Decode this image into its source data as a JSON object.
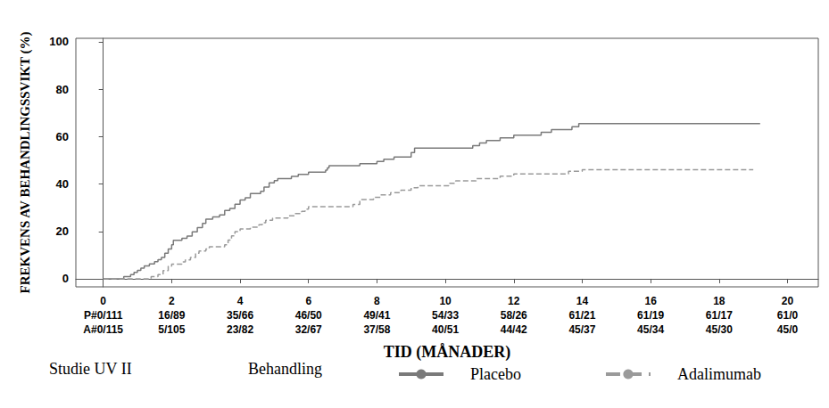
{
  "chart_data": {
    "type": "step",
    "subtitle": "Studie UV II",
    "legend_title": "Behandling",
    "x_label": "TID (MÅNADER)",
    "y_label": "FREKVENS AV BEHANDLINGSSVIKT (%)",
    "xlim": [
      -0.8,
      20.9
    ],
    "xticks": [
      0,
      2,
      4,
      6,
      8,
      10,
      12,
      14,
      16,
      18,
      20
    ],
    "ylim": [
      -3.4,
      101.5
    ],
    "yticks": [
      0,
      20,
      40,
      60,
      80,
      100
    ],
    "grid": false,
    "legend": "bottom",
    "at_risk": [
      [
        "P#0/111",
        "16/89",
        "35/66",
        "46/50",
        "49/41",
        "54/33",
        "58/26",
        "61/21",
        "61/19",
        "61/17",
        "61/0"
      ],
      [
        "A#0/115",
        "5/105",
        "23/82",
        "32/67",
        "37/58",
        "40/51",
        "44/42",
        "45/37",
        "45/34",
        "45/30",
        "45/0"
      ]
    ],
    "series": [
      {
        "name": "Placebo",
        "color": "#7a7a7a",
        "line_style": "solid",
        "x": [
          0,
          0.6,
          0.8,
          0.9,
          1.0,
          1.1,
          1.2,
          1.35,
          1.5,
          1.6,
          1.7,
          1.8,
          1.9,
          2.0,
          2.05,
          2.3,
          2.45,
          2.6,
          2.75,
          2.9,
          3.0,
          3.2,
          3.4,
          3.55,
          3.7,
          3.85,
          4.0,
          4.15,
          4.3,
          4.6,
          4.7,
          4.85,
          5.0,
          5.1,
          5.5,
          5.7,
          6.0,
          6.5,
          6.55,
          6.6,
          7.5,
          8.0,
          8.2,
          8.5,
          9.0,
          9.1,
          10.8,
          11.0,
          11.2,
          11.6,
          12.0,
          12.8,
          13.1,
          13.7,
          13.9,
          19.2
        ],
        "values": [
          0,
          0.9,
          1.8,
          2.7,
          3.6,
          4.5,
          5.4,
          6.3,
          7.2,
          8.1,
          9.0,
          10.8,
          12.6,
          14.4,
          16.2,
          17.1,
          18.0,
          19.8,
          21.6,
          23.4,
          25.2,
          26.1,
          27.0,
          28.8,
          29.7,
          31.5,
          33.3,
          34.2,
          36.0,
          36.9,
          38.7,
          40.5,
          41.4,
          42.3,
          43.2,
          44.1,
          45.0,
          45.9,
          46.8,
          47.7,
          48.6,
          49.5,
          50.5,
          51.4,
          53.3,
          55.2,
          56.2,
          57.3,
          58.4,
          59.5,
          60.6,
          61.8,
          63.0,
          64.2,
          65.5,
          65.5
        ]
      },
      {
        "name": "Adalimumab",
        "color": "#9a9a9a",
        "line_style": "dashed",
        "x": [
          0,
          1.4,
          1.6,
          1.75,
          1.9,
          2.0,
          2.3,
          2.4,
          2.55,
          2.7,
          2.8,
          3.0,
          3.1,
          3.55,
          3.65,
          3.75,
          3.85,
          4.0,
          4.3,
          4.55,
          4.65,
          4.75,
          4.95,
          5.4,
          5.6,
          5.8,
          5.9,
          6.0,
          7.3,
          7.5,
          7.9,
          8.1,
          8.4,
          8.7,
          9.0,
          9.2,
          10.1,
          10.3,
          10.9,
          11.6,
          12.0,
          13.6,
          14.0,
          19.0
        ],
        "values": [
          0,
          0.9,
          1.8,
          3.5,
          5.3,
          6.2,
          7.1,
          8.0,
          9.0,
          10.8,
          11.7,
          12.6,
          13.5,
          14.4,
          16.3,
          18.1,
          19.9,
          21.0,
          21.8,
          22.8,
          23.7,
          24.7,
          25.6,
          26.6,
          27.5,
          28.5,
          29.4,
          30.4,
          31.4,
          33.4,
          34.4,
          35.4,
          36.4,
          37.4,
          38.4,
          39.3,
          40.3,
          41.3,
          42.3,
          43.3,
          44.3,
          45.4,
          46.0,
          46.0
        ]
      }
    ]
  }
}
